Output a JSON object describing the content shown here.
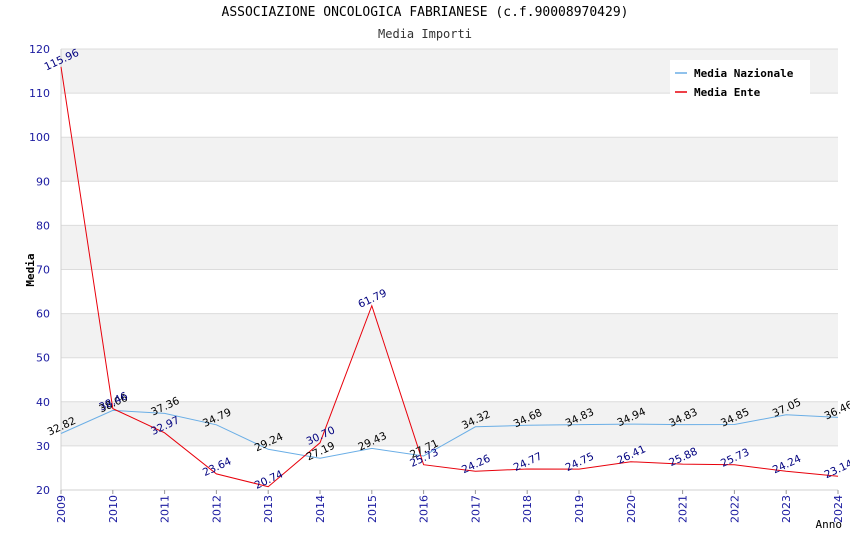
{
  "chart_data": {
    "type": "line",
    "title": "ASSOCIAZIONE ONCOLOGICA FABRIANESE (c.f.90008970429)",
    "subtitle": "Media Importi",
    "xlabel": "Anno",
    "ylabel": "Media",
    "ylim": [
      20,
      120
    ],
    "yticks": [
      20,
      30,
      40,
      50,
      60,
      70,
      80,
      90,
      100,
      110,
      120
    ],
    "categories": [
      "2009",
      "2010",
      "2011",
      "2012",
      "2013",
      "2014",
      "2015",
      "2016",
      "2017",
      "2018",
      "2019",
      "2020",
      "2021",
      "2022",
      "2023",
      "2024"
    ],
    "series": [
      {
        "name": "Media Nazionale",
        "color": "#6aaee6",
        "label_color": "#000000",
        "values": [
          32.82,
          38.06,
          37.36,
          34.79,
          29.24,
          27.19,
          29.43,
          27.71,
          34.32,
          34.68,
          34.83,
          34.94,
          34.83,
          34.85,
          37.05,
          36.46
        ]
      },
      {
        "name": "Media Ente",
        "color": "#e8000b",
        "label_color": "#00007f",
        "values": [
          115.96,
          38.46,
          32.97,
          23.64,
          20.74,
          30.7,
          61.79,
          25.73,
          24.26,
          24.77,
          24.75,
          26.41,
          25.88,
          25.73,
          24.24,
          23.14
        ]
      }
    ],
    "grid": true,
    "legend": "top-right"
  }
}
